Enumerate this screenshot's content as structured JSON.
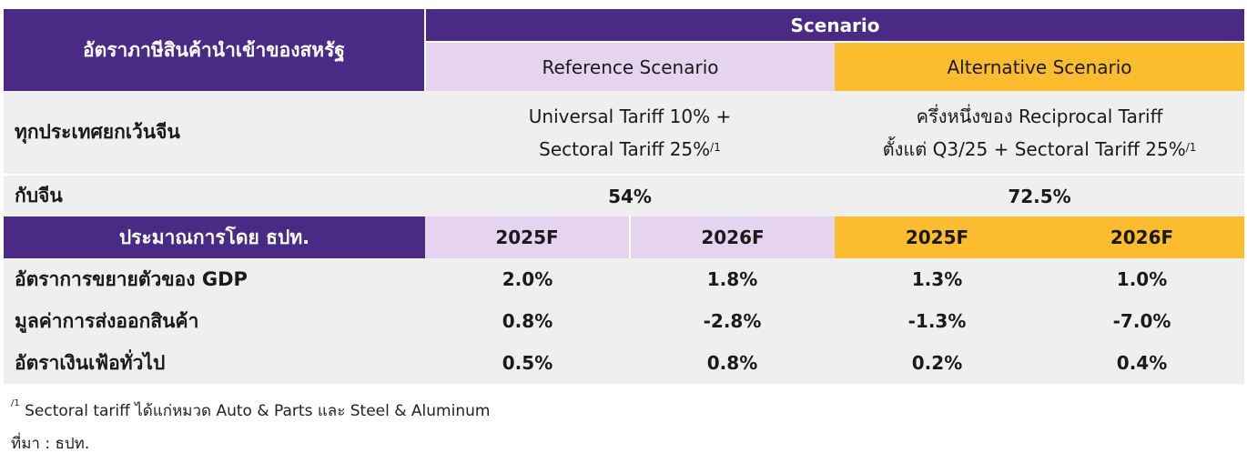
{
  "header": {
    "row_title": "อัตราภาษีสินค้านำเข้าของสหรัฐ",
    "scenario": "Scenario",
    "reference": "Reference Scenario",
    "alternative": "Alternative Scenario"
  },
  "tariff_rows": {
    "all_except_china": {
      "label": "ทุกประเทศยกเว้นจีน",
      "reference_line1": "Universal Tariff 10% +",
      "reference_line2": "Sectoral Tariff 25%",
      "reference_note": "/1",
      "alternative_line1": "ครึ่งหนึ่งของ Reciprocal Tariff",
      "alternative_line2": "ตั้งแต่ Q3/25 + Sectoral Tariff 25%",
      "alternative_note": "/1"
    },
    "china": {
      "label": "กับจีน",
      "reference": "54%",
      "alternative": "72.5%"
    }
  },
  "forecast_header": {
    "label": "ประมาณการโดย ธปท.",
    "years": [
      "2025F",
      "2026F",
      "2025F",
      "2026F"
    ]
  },
  "forecast_rows": [
    {
      "label": "อัตราการขยายตัวของ GDP",
      "values": [
        "2.0%",
        "1.8%",
        "1.3%",
        "1.0%"
      ]
    },
    {
      "label": "มูลค่าการส่งออกสินค้า",
      "values": [
        "0.8%",
        "-2.8%",
        "-1.3%",
        "-7.0%"
      ]
    },
    {
      "label": "อัตราเงินเฟ้อทั่วไป",
      "values": [
        "0.5%",
        "0.8%",
        "0.2%",
        "0.4%"
      ]
    }
  ],
  "footnote": {
    "marker": "/1",
    "text": "Sectoral tariff ได้แก่หมวด Auto & Parts และ Steel & Aluminum",
    "source": "ที่มา : ธปท."
  },
  "colors": {
    "header_purple": "#4b2a86",
    "reference_lavender": "#e5d3ef",
    "alternative_gold": "#fbbc2d",
    "row_grey": "#efefef"
  }
}
